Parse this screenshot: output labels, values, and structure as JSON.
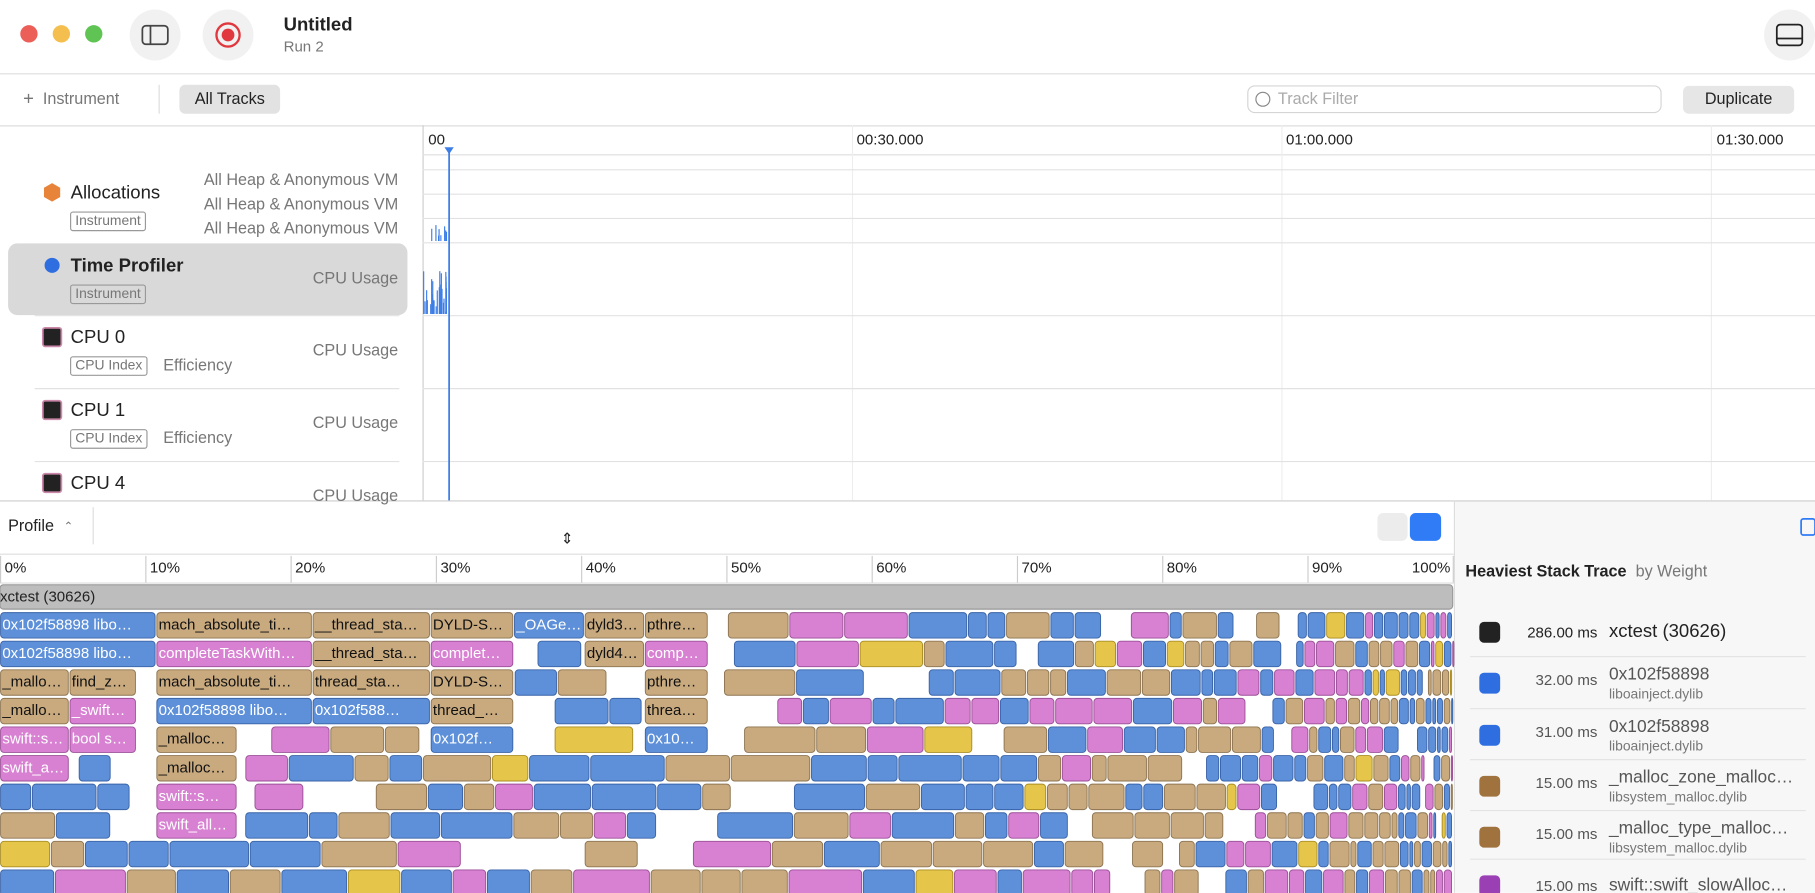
{
  "window": {
    "title": "Untitled",
    "subtitle": "Run 2"
  },
  "toolbar": {
    "add_instrument": "Instrument",
    "all_tracks": "All Tracks",
    "track_filter_placeholder": "Track Filter",
    "duplicate": "Duplicate"
  },
  "timeline": {
    "ticks": [
      "00",
      "00:30.000",
      "01:00.000",
      "01:30.000"
    ]
  },
  "tracks": [
    {
      "name": "Allocations",
      "tag": "Instrument",
      "details": [
        "All Heap & Anonymous VM",
        "All Heap & Anonymous VM",
        "All Heap & Anonymous VM"
      ]
    },
    {
      "name": "Time Profiler",
      "tag": "Instrument",
      "details": [
        "CPU Usage"
      ]
    },
    {
      "name": "CPU 0",
      "tag": "CPU Index",
      "core": "Efficiency",
      "details": [
        "CPU Usage"
      ]
    },
    {
      "name": "CPU 1",
      "tag": "CPU Index",
      "core": "Efficiency",
      "details": [
        "CPU Usage"
      ]
    },
    {
      "name": "CPU 4",
      "details": [
        "CPU Usage"
      ]
    }
  ],
  "profile": {
    "mode": "Profile",
    "percent_ticks": [
      "0%",
      "10%",
      "20%",
      "30%",
      "40%",
      "50%",
      "60%",
      "70%",
      "80%",
      "90%",
      "100%"
    ],
    "root": "xctest (30626)",
    "rows": [
      [
        "0x102f58898 libo…",
        "mach_absolute_ti…",
        "__thread_sta…",
        "DYLD-S…",
        "_OAGe…",
        "dyld3…",
        "pthre…"
      ],
      [
        "0x102f58898 libo…",
        "completeTaskWith…",
        "__thread_sta…",
        "complet…",
        "dyld4…",
        "comp…"
      ],
      [
        "_mallo…",
        "find_z…",
        "mach_absolute_ti…",
        "thread_sta…",
        "DYLD-S…",
        "pthre…"
      ],
      [
        "_mallo…",
        "_swift…",
        "0x102f58898 libo…",
        "0x102f588…",
        "thread_…",
        "threa…"
      ],
      [
        "swift::s…",
        "bool s…",
        "_malloc…",
        "0x102f…",
        "0x10…"
      ],
      [
        "swift_a…",
        "_malloc…"
      ],
      [
        "swift::s…"
      ],
      [
        "swift_all…"
      ]
    ]
  },
  "heaviest_stack_trace": {
    "title": "Heaviest Stack Trace",
    "subtitle": "by Weight",
    "frames": [
      {
        "weight": "286.00 ms",
        "symbol": "xctest (30626)"
      },
      {
        "weight": "32.00 ms",
        "symbol": "0x102f58898",
        "library": "liboainject.dylib"
      },
      {
        "weight": "31.00 ms",
        "symbol": "0x102f58898",
        "library": "liboainject.dylib"
      },
      {
        "weight": "15.00 ms",
        "symbol": "_malloc_zone_malloc…",
        "library": "libsystem_malloc.dylib"
      },
      {
        "weight": "15.00 ms",
        "symbol": "_malloc_type_malloc…",
        "library": "libsystem_malloc.dylib"
      },
      {
        "weight": "15.00 ms",
        "symbol": "swift::swift_slowAlloc…"
      }
    ]
  }
}
